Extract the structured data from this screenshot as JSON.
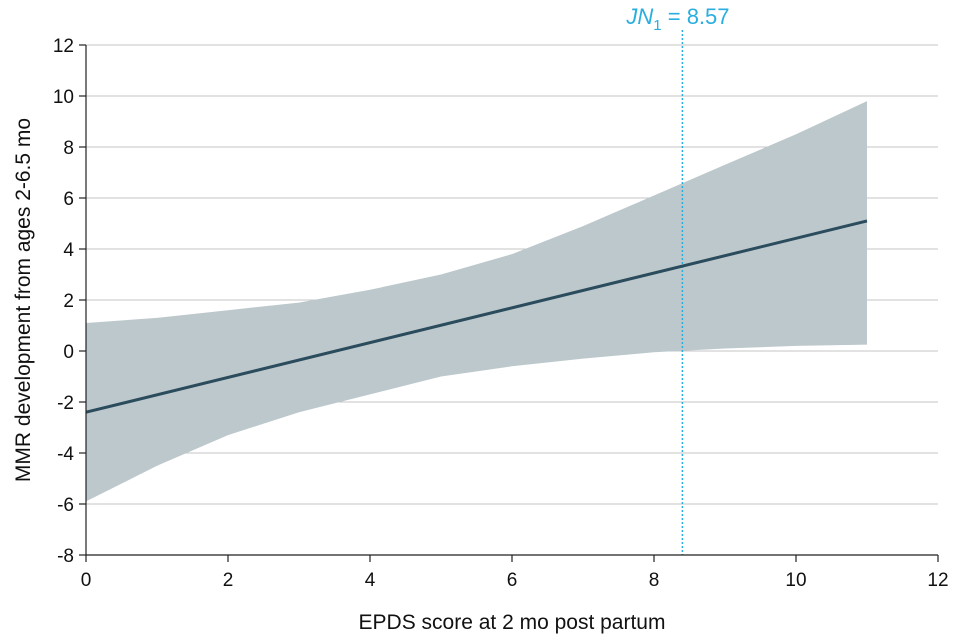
{
  "chart_data": {
    "type": "line",
    "xlabel": "EPDS score at 2 mo post partum",
    "ylabel": "MMR development from ages 2-6.5 mo",
    "xlim": [
      0,
      12
    ],
    "ylim": [
      -8,
      12
    ],
    "xticks": [
      0,
      2,
      4,
      6,
      8,
      10,
      12
    ],
    "yticks": [
      -8,
      -6,
      -4,
      -2,
      0,
      2,
      4,
      6,
      8,
      10,
      12
    ],
    "grid": "horizontal",
    "series": [
      {
        "x": [
          0,
          11
        ],
        "y": [
          -2.4,
          5.1
        ]
      }
    ],
    "confidence_band": {
      "x": [
        0,
        1,
        2,
        3,
        4,
        5,
        6,
        7,
        8,
        9,
        10,
        11
      ],
      "lower": [
        -5.9,
        -4.5,
        -3.3,
        -2.4,
        -1.7,
        -1.0,
        -0.6,
        -0.3,
        -0.05,
        0.1,
        0.2,
        0.25
      ],
      "upper": [
        1.1,
        1.3,
        1.6,
        1.9,
        2.4,
        3.0,
        3.8,
        4.9,
        6.1,
        7.3,
        8.5,
        9.8
      ]
    },
    "annotation": {
      "x": 8.4,
      "label_main": "JN",
      "label_sub": "1",
      "label_value": " = 8.57",
      "color": "#2aaee0"
    },
    "colors": {
      "line": "#2b4c5c",
      "band": "#bcc8cc",
      "grid": "#c4c4c4",
      "axis": "#222222"
    }
  }
}
